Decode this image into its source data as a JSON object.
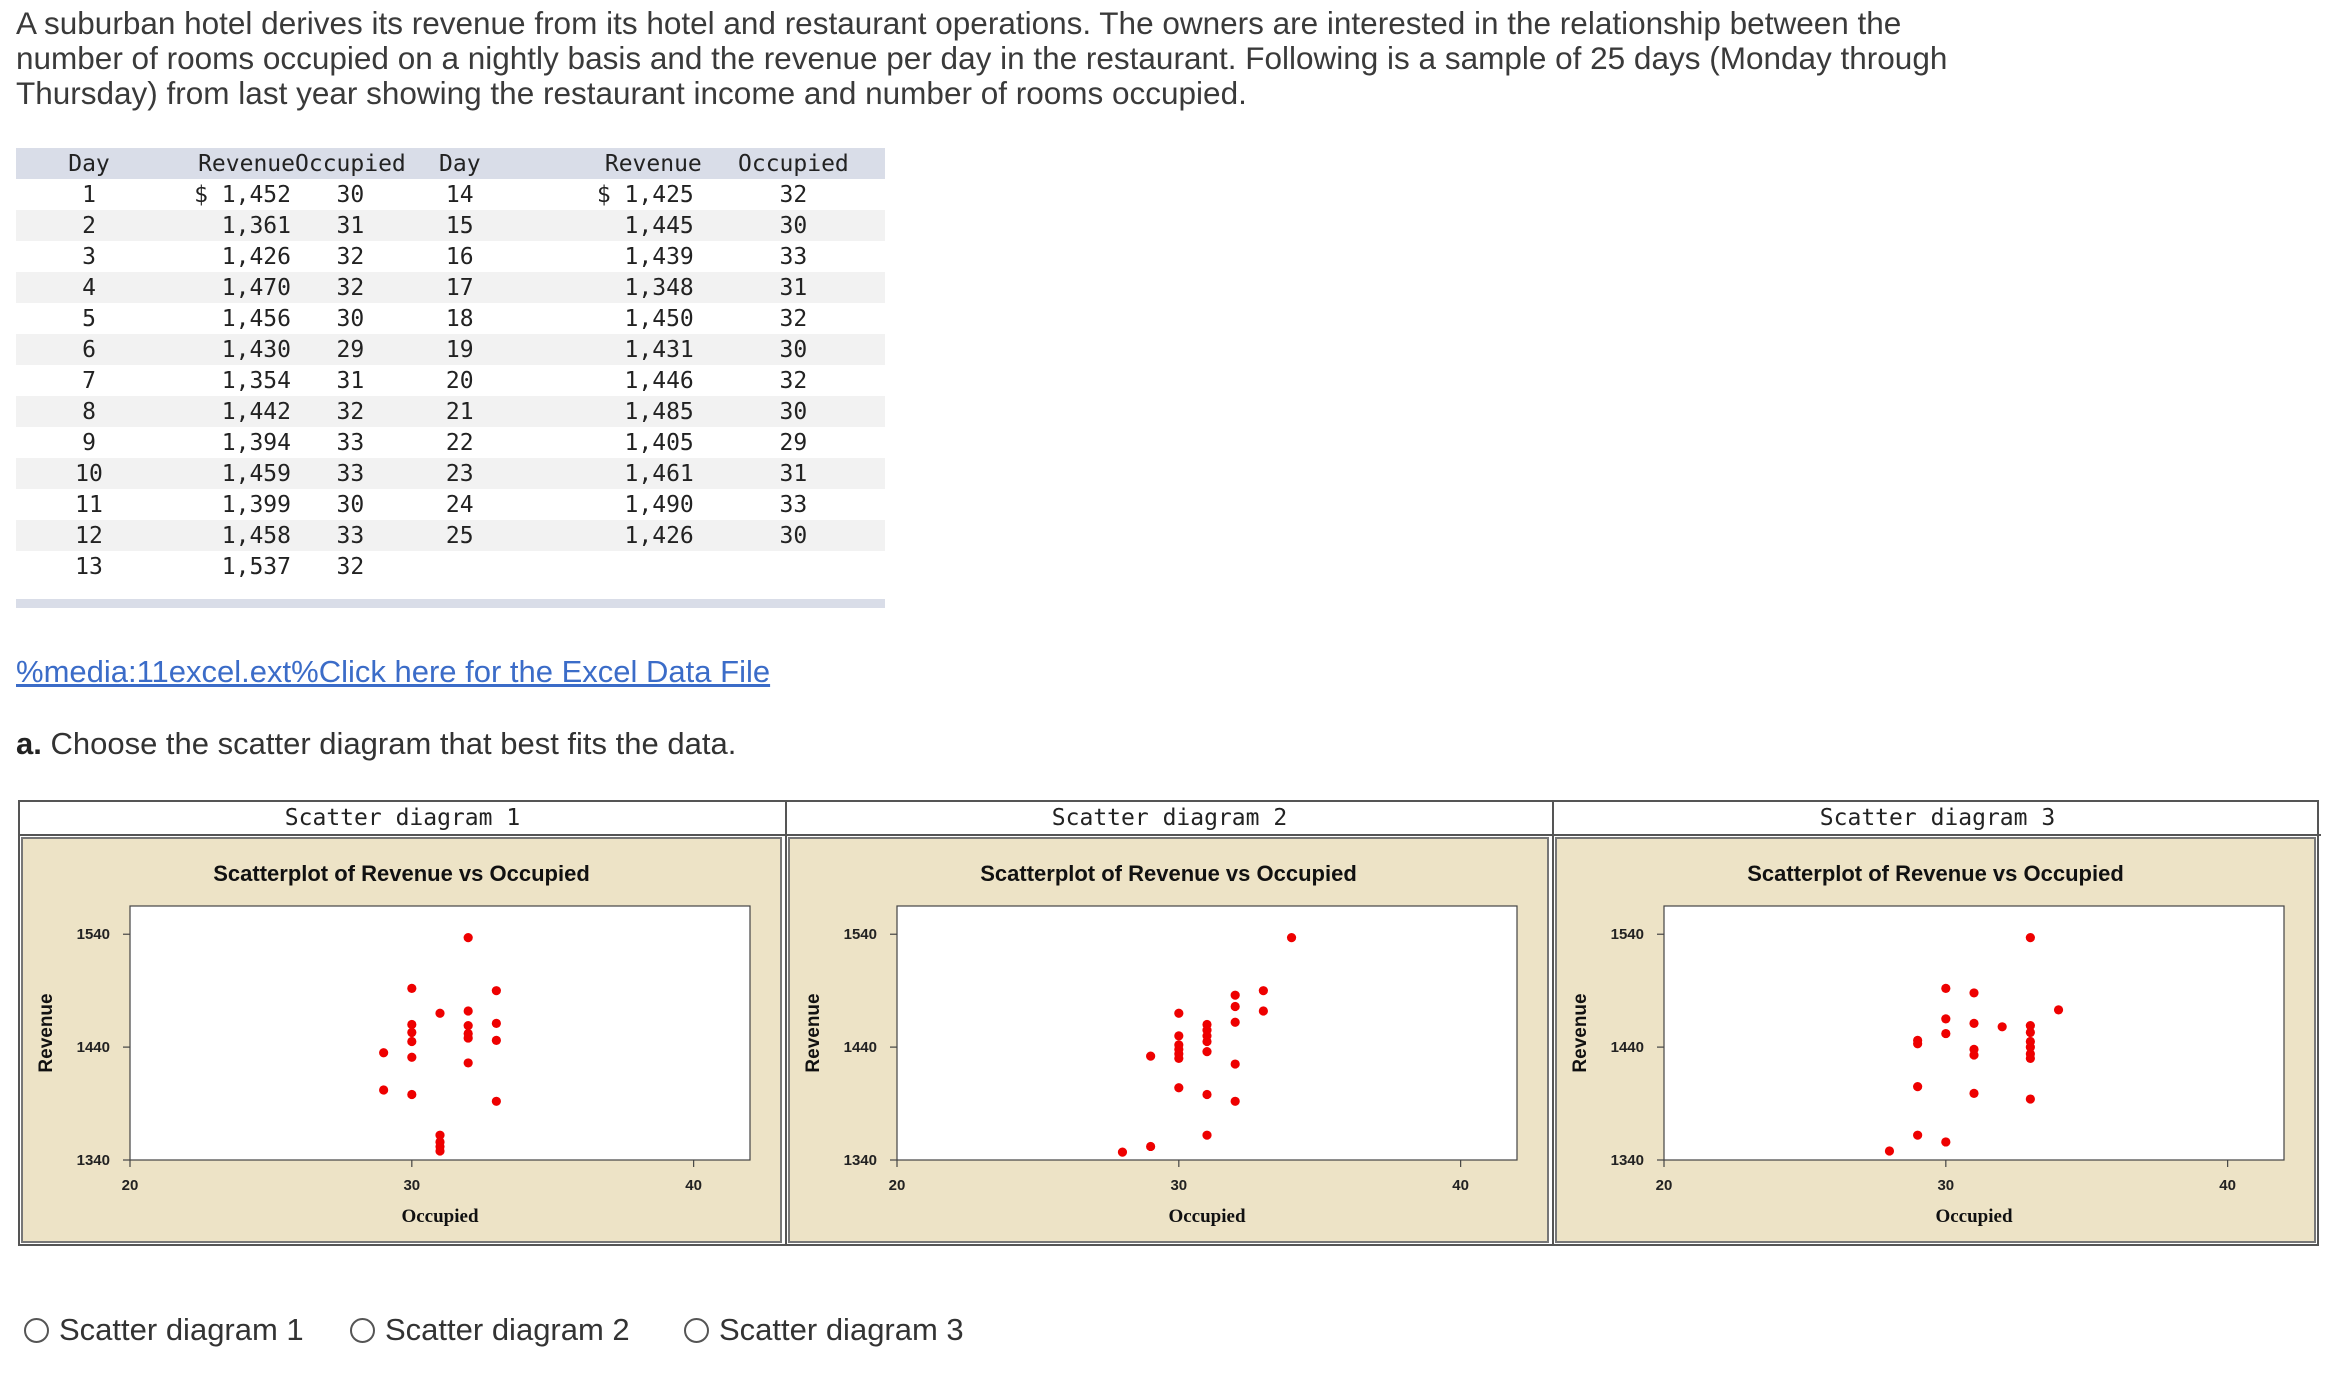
{
  "intro": "A suburban hotel derives its revenue from its hotel and restaurant operations. The owners are interested in the relationship between the number of rooms occupied on a nightly basis and the revenue per day in the restaurant. Following is a sample of 25 days (Monday through Thursday) from last year showing the restaurant income and number of rooms occupied.",
  "table": {
    "headers": [
      "Day",
      "Revenue",
      "Occupied",
      "Day",
      "Revenue",
      "Occupied"
    ],
    "left": [
      {
        "day": "1",
        "revenue": "$ 1,452",
        "occupied": "30"
      },
      {
        "day": "2",
        "revenue": "1,361",
        "occupied": "31"
      },
      {
        "day": "3",
        "revenue": "1,426",
        "occupied": "32"
      },
      {
        "day": "4",
        "revenue": "1,470",
        "occupied": "32"
      },
      {
        "day": "5",
        "revenue": "1,456",
        "occupied": "30"
      },
      {
        "day": "6",
        "revenue": "1,430",
        "occupied": "29"
      },
      {
        "day": "7",
        "revenue": "1,354",
        "occupied": "31"
      },
      {
        "day": "8",
        "revenue": "1,442",
        "occupied": "32"
      },
      {
        "day": "9",
        "revenue": "1,394",
        "occupied": "33"
      },
      {
        "day": "10",
        "revenue": "1,459",
        "occupied": "33"
      },
      {
        "day": "11",
        "revenue": "1,399",
        "occupied": "30"
      },
      {
        "day": "12",
        "revenue": "1,458",
        "occupied": "33"
      },
      {
        "day": "13",
        "revenue": "1,537",
        "occupied": "32"
      }
    ],
    "right": [
      {
        "day": "14",
        "revenue": "$ 1,425",
        "occupied": "32"
      },
      {
        "day": "15",
        "revenue": "1,445",
        "occupied": "30"
      },
      {
        "day": "16",
        "revenue": "1,439",
        "occupied": "33"
      },
      {
        "day": "17",
        "revenue": "1,348",
        "occupied": "31"
      },
      {
        "day": "18",
        "revenue": "1,450",
        "occupied": "32"
      },
      {
        "day": "19",
        "revenue": "1,431",
        "occupied": "30"
      },
      {
        "day": "20",
        "revenue": "1,446",
        "occupied": "32"
      },
      {
        "day": "21",
        "revenue": "1,485",
        "occupied": "30"
      },
      {
        "day": "22",
        "revenue": "1,405",
        "occupied": "29"
      },
      {
        "day": "23",
        "revenue": "1,461",
        "occupied": "31"
      },
      {
        "day": "24",
        "revenue": "1,490",
        "occupied": "33"
      },
      {
        "day": "25",
        "revenue": "1,426",
        "occupied": "30"
      }
    ]
  },
  "link_text": "%media:11excel.ext%Click here for the Excel Data File",
  "question": {
    "prefix": "a.",
    "text": " Choose the scatter diagram that best fits the data."
  },
  "colors": {
    "panel_bg": "#ede3c6",
    "point": "#ee0000",
    "link": "#3b6cc8",
    "table_header": "#d9dde8"
  },
  "chart_data": [
    {
      "type": "scatter",
      "label": "Scatter diagram 1",
      "title": "Scatterplot of Revenue vs Occupied",
      "xlabel": "Occupied",
      "ylabel": "Revenue",
      "xlim": [
        20,
        42
      ],
      "ylim": [
        1340,
        1565
      ],
      "xticks": [
        20,
        30,
        40
      ],
      "yticks": [
        1340,
        1440,
        1540
      ],
      "grid": false,
      "points": [
        [
          32,
          1537
        ],
        [
          30,
          1492
        ],
        [
          33,
          1490
        ],
        [
          31,
          1470
        ],
        [
          32,
          1472
        ],
        [
          30,
          1460
        ],
        [
          30,
          1453
        ],
        [
          32,
          1459
        ],
        [
          32,
          1452
        ],
        [
          33,
          1461
        ],
        [
          32,
          1448
        ],
        [
          30,
          1445
        ],
        [
          33,
          1446
        ],
        [
          29,
          1435
        ],
        [
          30,
          1431
        ],
        [
          32,
          1426
        ],
        [
          29,
          1402
        ],
        [
          30,
          1398
        ],
        [
          33,
          1392
        ],
        [
          31,
          1362
        ],
        [
          31,
          1356
        ],
        [
          31,
          1352
        ],
        [
          31,
          1348
        ]
      ]
    },
    {
      "type": "scatter",
      "label": "Scatter diagram 2",
      "title": "Scatterplot of Revenue vs Occupied",
      "xlabel": "Occupied",
      "ylabel": "Revenue",
      "xlim": [
        20,
        42
      ],
      "ylim": [
        1340,
        1565
      ],
      "xticks": [
        20,
        30,
        40
      ],
      "yticks": [
        1340,
        1440,
        1540
      ],
      "grid": false,
      "points": [
        [
          34,
          1537
        ],
        [
          32,
          1486
        ],
        [
          33,
          1490
        ],
        [
          30,
          1470
        ],
        [
          33,
          1472
        ],
        [
          32,
          1476
        ],
        [
          31,
          1455
        ],
        [
          31,
          1460
        ],
        [
          32,
          1462
        ],
        [
          30,
          1450
        ],
        [
          31,
          1450
        ],
        [
          31,
          1445
        ],
        [
          30,
          1442
        ],
        [
          30,
          1438
        ],
        [
          31,
          1436
        ],
        [
          29,
          1432
        ],
        [
          30,
          1434
        ],
        [
          30,
          1430
        ],
        [
          32,
          1425
        ],
        [
          30,
          1404
        ],
        [
          31,
          1398
        ],
        [
          32,
          1392
        ],
        [
          31,
          1362
        ],
        [
          29,
          1352
        ],
        [
          28,
          1347
        ]
      ]
    },
    {
      "type": "scatter",
      "label": "Scatter diagram 3",
      "title": "Scatterplot of Revenue vs Occupied",
      "xlabel": "Occupied",
      "ylabel": "Revenue",
      "xlim": [
        20,
        42
      ],
      "ylim": [
        1340,
        1565
      ],
      "xticks": [
        20,
        30,
        40
      ],
      "yticks": [
        1340,
        1440,
        1540
      ],
      "grid": false,
      "points": [
        [
          33,
          1537
        ],
        [
          30,
          1492
        ],
        [
          31,
          1488
        ],
        [
          34,
          1473
        ],
        [
          30,
          1465
        ],
        [
          31,
          1461
        ],
        [
          32,
          1458
        ],
        [
          33,
          1459
        ],
        [
          30,
          1452
        ],
        [
          33,
          1453
        ],
        [
          29,
          1446
        ],
        [
          33,
          1445
        ],
        [
          29,
          1443
        ],
        [
          31,
          1438
        ],
        [
          31,
          1433
        ],
        [
          33,
          1440
        ],
        [
          33,
          1434
        ],
        [
          33,
          1430
        ],
        [
          29,
          1405
        ],
        [
          31,
          1399
        ],
        [
          33,
          1394
        ],
        [
          29,
          1362
        ],
        [
          30,
          1356
        ],
        [
          28,
          1348
        ]
      ]
    }
  ],
  "options": [
    "Scatter diagram 1",
    "Scatter diagram 2",
    "Scatter diagram 3"
  ]
}
